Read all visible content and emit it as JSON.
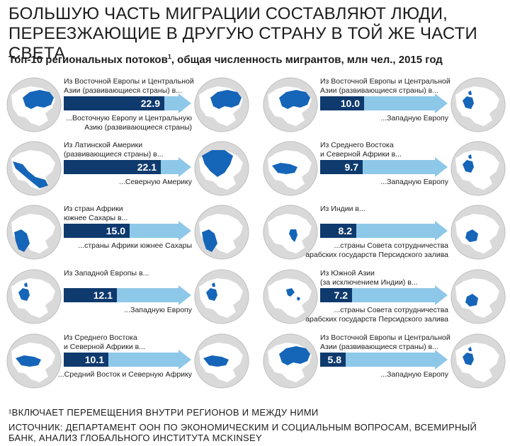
{
  "title_line1": "БОЛЬШУЮ ЧАСТЬ МИГРАЦИИ СОСТАВЛЯЮТ ЛЮДИ,",
  "title_line2": "ПЕРЕЕЗЖАЮЩИЕ В ДРУГУЮ СТРАНУ В ТОЙ ЖЕ ЧАСТИ СВЕТА",
  "subtitle_main": "Топ-10 региональных потоков",
  "subtitle_sup": "1",
  "subtitle_rest": ", общая численность мигрантов, млн чел., 2015 год",
  "footnote": "¹ВКЛЮЧАЕТ ПЕРЕМЕЩЕНИЯ ВНУТРИ РЕГИОНОВ И МЕЖДУ НИМИ",
  "source": "ИСТОЧНИК: ДЕПАРТАМЕНТ ООН ПО ЭКОНОМИЧЕСКИМ И СОЦИАЛЬНЫМ ВОПРОСАМ, ВСЕМИРНЫЙ БАНК, АНАЛИЗ ГЛОБАЛЬНОГО ИНСТИТУТА MCKINSEY",
  "colors": {
    "bar": "#0e3a6e",
    "arrow": "#8ec8e8",
    "region": "#1565b8",
    "globe": "#d9d9d9",
    "land": "#ffffff"
  },
  "chart_data": {
    "type": "bar",
    "unit": "млн чел.",
    "flows": [
      {
        "from": [
          "Из Восточной Европы и Центральной",
          "Азии (развивающиеся страны) в..."
        ],
        "to": [
          "...Восточную Европу и Центральную",
          "Азию (развивающиеся страны)"
        ],
        "value": 22.9,
        "from_region": "eurasia",
        "to_region": "eurasia"
      },
      {
        "from": [
          "Из Латинской Америки",
          "(развивающиеся страны) в..."
        ],
        "to": [
          "...Северную Америку"
        ],
        "value": 22.1,
        "from_region": "latam",
        "to_region": "namerica"
      },
      {
        "from": [
          "Из стран Африки",
          "южнее Сахары в..."
        ],
        "to": [
          "...страны Африки  южнее Сахары"
        ],
        "value": 15.0,
        "from_region": "ssafrica",
        "to_region": "ssafrica"
      },
      {
        "from": [
          "Из Западной Европы в..."
        ],
        "to": [
          "...Западную Европу"
        ],
        "value": 12.1,
        "from_region": "weurope",
        "to_region": "weurope"
      },
      {
        "from": [
          "Из Среднего Востока",
          "и Северной Африки в..."
        ],
        "to": [
          "...Средний Восток и Северную Африку"
        ],
        "value": 10.1,
        "from_region": "mena",
        "to_region": "mena"
      },
      {
        "from": [
          "Из Восточной Европы и Центральной",
          "Азии (развивающиеся страны) в..."
        ],
        "to": [
          "...Западную Европу"
        ],
        "value": 10.0,
        "from_region": "eurasia",
        "to_region": "weurope"
      },
      {
        "from": [
          "Из Среднего Востока",
          "и Северной Африки в..."
        ],
        "to": [
          "...Западную Европу"
        ],
        "value": 9.7,
        "from_region": "mena",
        "to_region": "weurope"
      },
      {
        "from": [
          "Из Индии в..."
        ],
        "to": [
          "...страны Совета сотрудничества",
          "арабских государств Персидского залива"
        ],
        "value": 8.2,
        "from_region": "india",
        "to_region": "gulf"
      },
      {
        "from": [
          "Из Южной Азии",
          "(за исключением Индии) в..."
        ],
        "to": [
          "...страны Совета сотрудничества",
          "арабских государств Персидского залива"
        ],
        "value": 7.2,
        "from_region": "sasia",
        "to_region": "gulf"
      },
      {
        "from": [
          "Из Восточной Европы и Центральной",
          "Азии (развивающиеся страны) в..."
        ],
        "to": [
          "...Западную Европу"
        ],
        "value": 5.8,
        "from_region": "eurasia",
        "to_region": "weurope"
      }
    ]
  }
}
